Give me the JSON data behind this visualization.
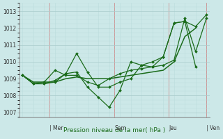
{
  "background_color": "#cce8e8",
  "grid_color_major": "#aacccc",
  "grid_color_minor": "#bbdddd",
  "line_color": "#1a6b1a",
  "marker_color": "#1a6b1a",
  "xlabel": "Pression niveau de la mer( hPa )",
  "ylabel_ticks": [
    1007,
    1008,
    1009,
    1010,
    1011,
    1012,
    1013
  ],
  "ylim": [
    1006.7,
    1013.5
  ],
  "xlim": [
    -0.3,
    17.3
  ],
  "series": [
    {
      "x": [
        0,
        1,
        2,
        3,
        4,
        5,
        6,
        7,
        8,
        9,
        10,
        11,
        12,
        13,
        14,
        15,
        16,
        17
      ],
      "y": [
        1009.2,
        1008.7,
        1008.7,
        1008.8,
        1009.3,
        1010.5,
        1009.4,
        1008.5,
        1008.5,
        1008.8,
        1009.0,
        1009.8,
        1010.0,
        1010.3,
        1012.3,
        1012.4,
        1012.1,
        1012.8
      ],
      "marker": true,
      "lw": 0.9
    },
    {
      "x": [
        0,
        1,
        2,
        3,
        4,
        5,
        6,
        7,
        8,
        9,
        10,
        11,
        12,
        13,
        14,
        15,
        16,
        17
      ],
      "y": [
        1009.2,
        1008.7,
        1008.7,
        1008.9,
        1009.3,
        1009.4,
        1008.5,
        1007.9,
        1007.3,
        1008.3,
        1010.0,
        1009.8,
        1009.7,
        1009.8,
        1010.1,
        1012.6,
        1010.6,
        1012.6
      ],
      "marker": true,
      "lw": 0.9
    },
    {
      "x": [
        0,
        1,
        2,
        3,
        4,
        5,
        6,
        7,
        8,
        9,
        10,
        11,
        12,
        13,
        14,
        15,
        16
      ],
      "y": [
        1009.2,
        1008.7,
        1008.8,
        1009.5,
        1009.2,
        1009.2,
        1008.8,
        1008.6,
        1009.0,
        1009.3,
        1009.5,
        1009.6,
        1009.7,
        1010.3,
        1012.3,
        1012.4,
        1009.7
      ],
      "marker": true,
      "lw": 0.9
    },
    {
      "x": [
        0,
        1,
        2,
        3,
        4,
        5,
        6,
        7,
        8,
        9,
        10,
        11,
        12,
        13,
        14,
        15,
        16
      ],
      "y": [
        1009.2,
        1008.8,
        1008.8,
        1008.8,
        1009.0,
        1009.1,
        1009.0,
        1009.0,
        1009.0,
        1009.1,
        1009.2,
        1009.3,
        1009.4,
        1009.5,
        1010.0,
        1011.5,
        1012.0
      ],
      "marker": false,
      "lw": 1.1
    }
  ],
  "vlines": [
    2.5,
    8.5,
    13.5,
    17.0
  ],
  "vline_color": "#cc9999",
  "day_labels": [
    {
      "text": "| Mer",
      "x": 2.5
    },
    {
      "text": "Sam",
      "x": 8.5
    },
    {
      "text": "Jeu",
      "x": 13.5
    },
    {
      "text": "| Ven",
      "x": 17.0
    }
  ],
  "xlabel_color": "#1a6b1a",
  "xlabel_fontsize": 6.5,
  "tick_fontsize": 5.5,
  "day_label_fontsize": 5.5
}
